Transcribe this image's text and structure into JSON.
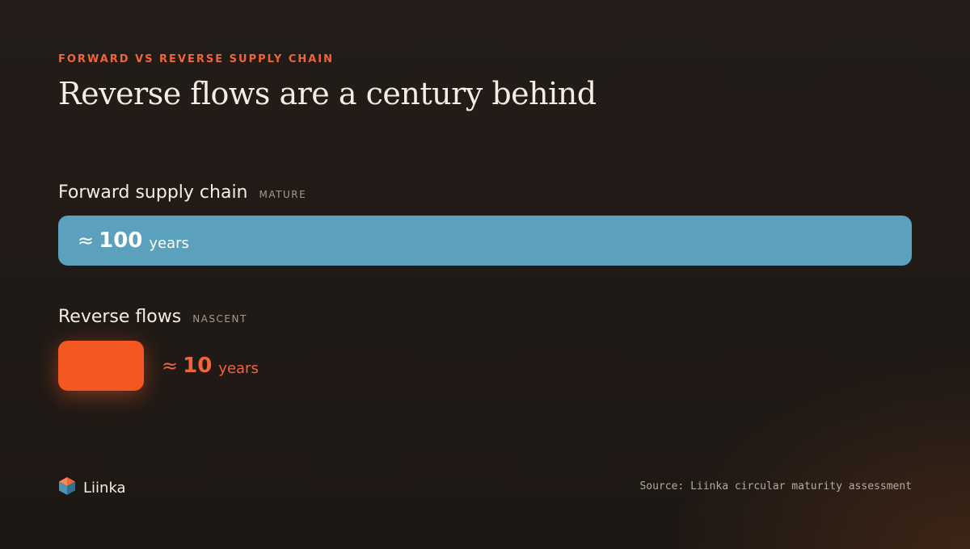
{
  "header": {
    "eyebrow": "FORWARD VS REVERSE SUPPLY CHAIN",
    "title": "Reverse flows are a century behind"
  },
  "chart_data": {
    "type": "bar",
    "orientation": "horizontal",
    "title": "Reverse flows are a century behind",
    "subtitle": "FORWARD VS REVERSE SUPPLY CHAIN",
    "categories": [
      "Forward supply chain",
      "Reverse flows"
    ],
    "category_tags": [
      "MATURE",
      "NASCENT"
    ],
    "values": [
      100,
      10
    ],
    "value_prefix": "≈",
    "unit": "years",
    "xlim": [
      0,
      100
    ],
    "grid": false,
    "colors": [
      "#5ba1bd",
      "#f35823"
    ]
  },
  "footer": {
    "brand": "Liinka",
    "logo_icon": "liinka-hexagon-logo",
    "source": "Source: Liinka circular maturity assessment"
  },
  "colors": {
    "accent": "#f0643a",
    "forward_bar": "#5ba1bd",
    "reverse_bar": "#f35823",
    "background": "#231c18"
  }
}
